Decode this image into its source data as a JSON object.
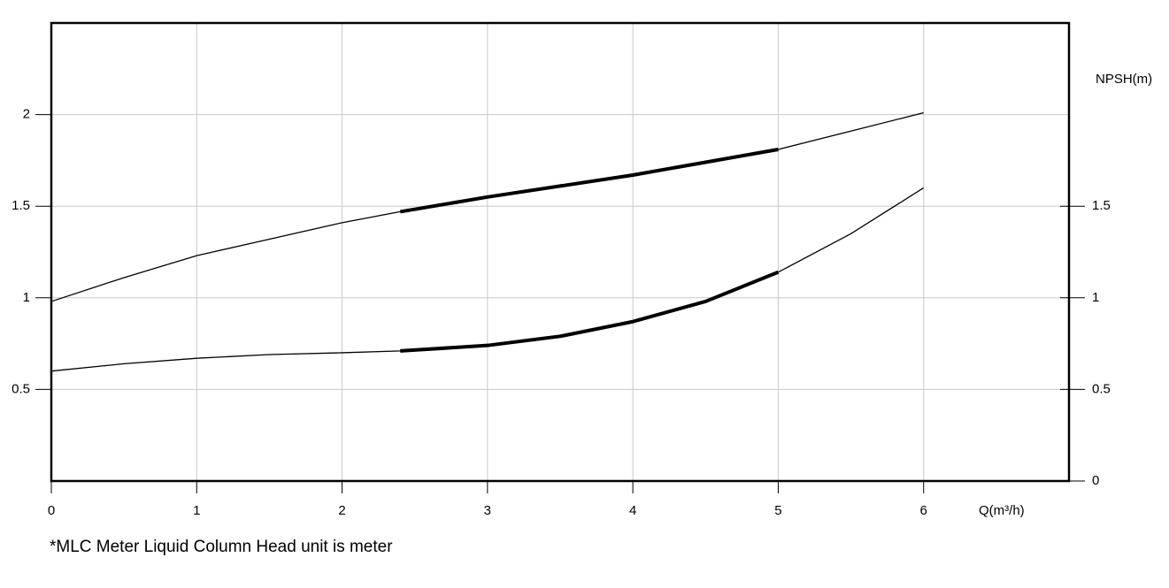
{
  "chart_data": {
    "type": "line",
    "x_label": "Q(m³/h)",
    "y2_label": "NPSH(m)",
    "footnote": "*MLC Meter Liquid Column Head unit is meter",
    "x": [
      0,
      0.5,
      1,
      1.5,
      2,
      2.4,
      3,
      3.5,
      4,
      4.5,
      5,
      5.5,
      6
    ],
    "series": [
      {
        "color": "#000000",
        "values": [
          0.98,
          1.11,
          1.23,
          1.32,
          1.41,
          1.47,
          1.55,
          1.61,
          1.67,
          1.74,
          1.81,
          1.91,
          2.01
        ]
      },
      {
        "color": "#000000",
        "axis": "y2",
        "values": [
          0.6,
          0.64,
          0.67,
          0.69,
          0.7,
          0.71,
          0.74,
          0.79,
          0.87,
          0.98,
          1.14,
          1.35,
          1.6
        ]
      }
    ],
    "bold_range": [
      2.4,
      5
    ],
    "xlim": [
      0,
      7
    ],
    "xticks": [
      0,
      1,
      2,
      3,
      4,
      5,
      6
    ],
    "ylim": [
      0,
      2.5
    ],
    "yticks": [
      0.5,
      1,
      1.5,
      2
    ],
    "y2lim": [
      0,
      2.5
    ],
    "y2ticks": [
      0,
      0.5,
      1,
      1.5
    ],
    "grid": true
  }
}
